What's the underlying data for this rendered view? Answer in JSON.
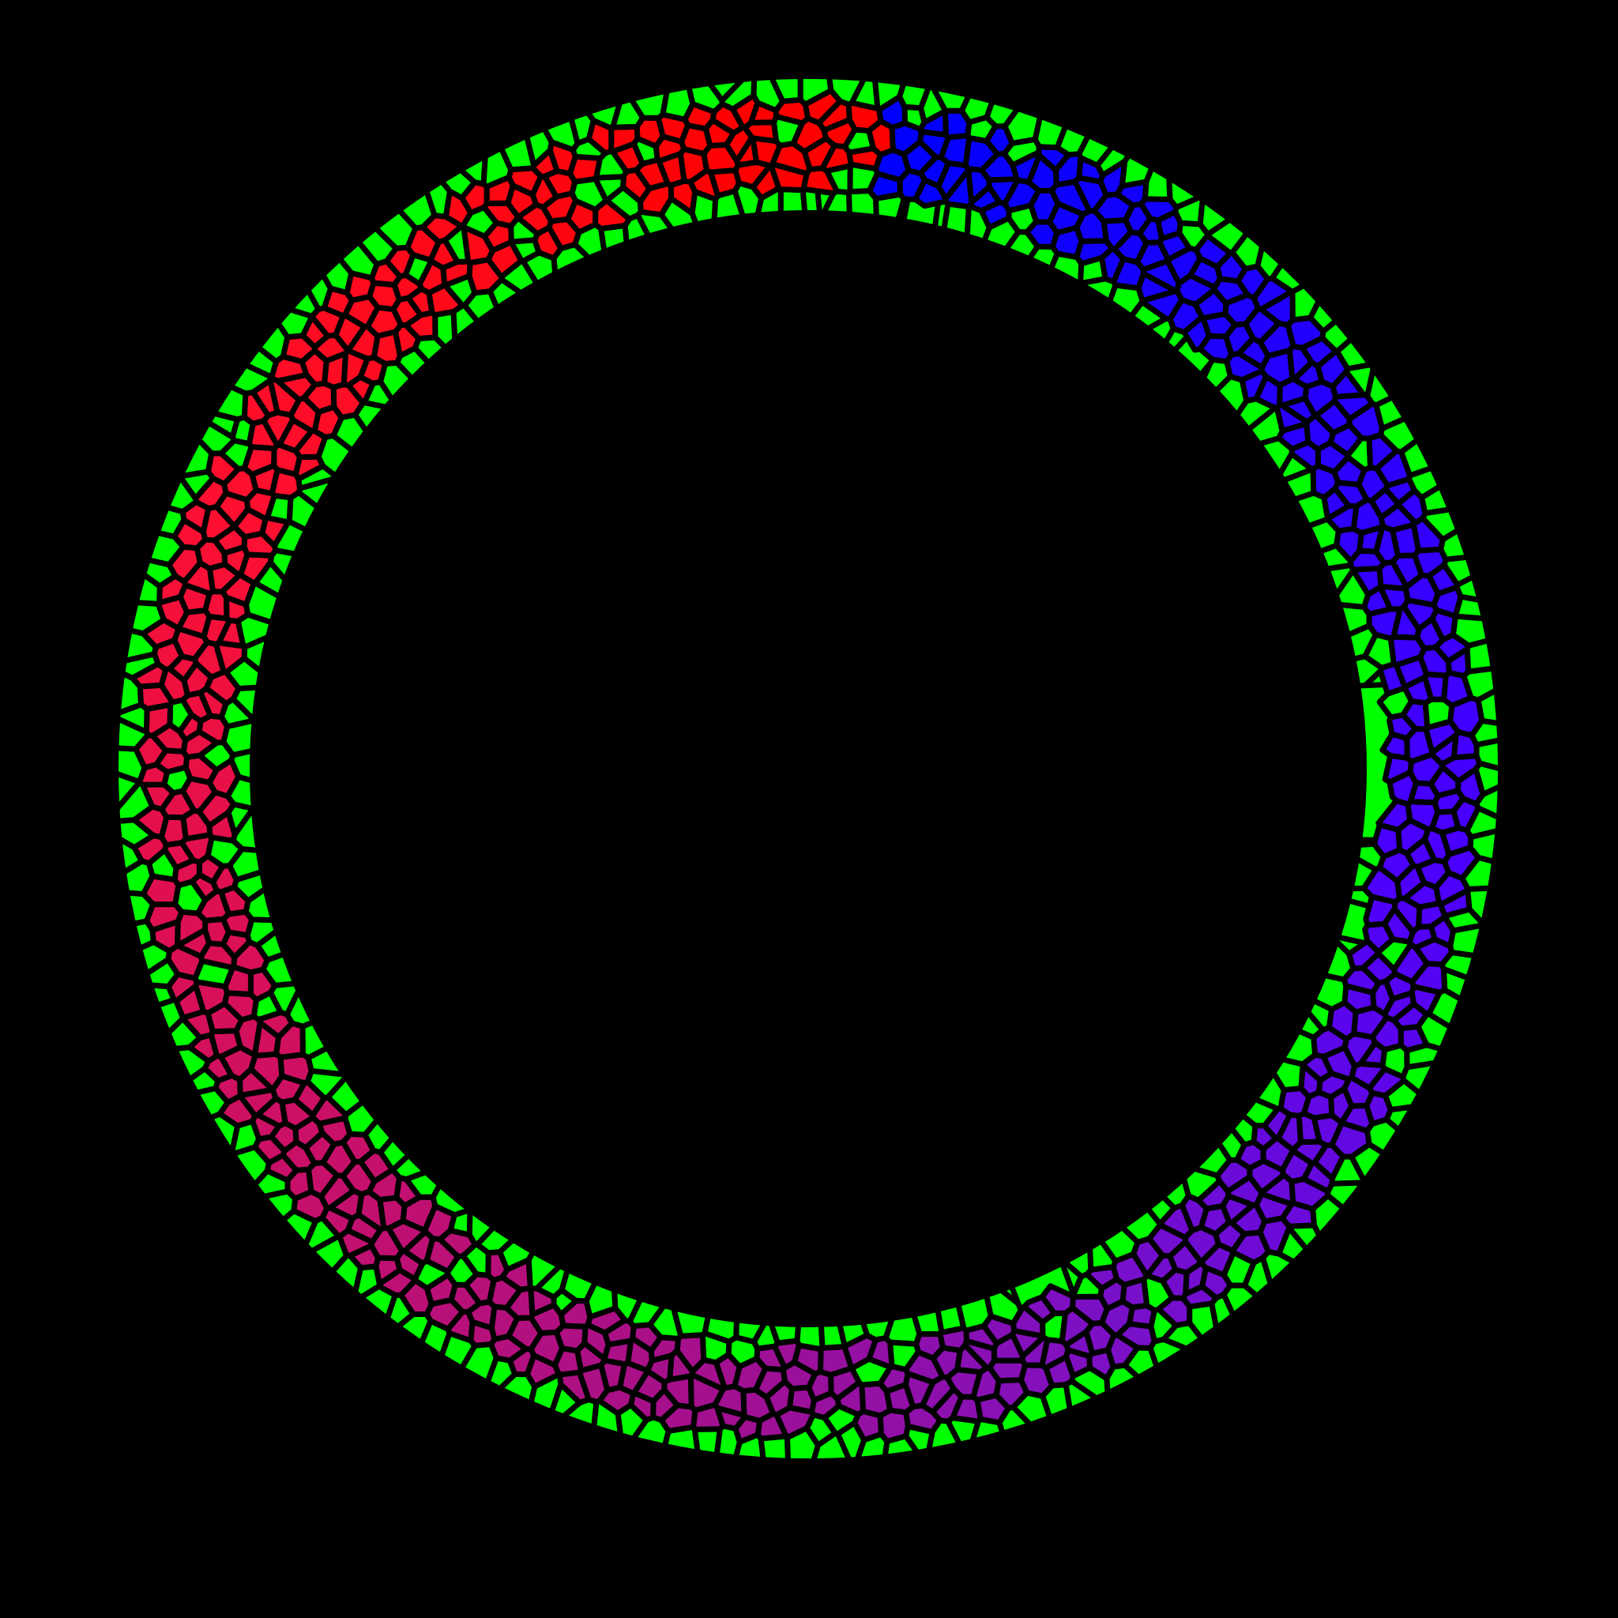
{
  "image": {
    "description_tag": "voronoi-ring-mosaic",
    "background_color": "#000000",
    "border_color": "#000000",
    "ring": {
      "fill_color_outer_band": "#00FF00",
      "gradient_stops": [
        {
          "label": "top",
          "color": "#0000FF"
        },
        {
          "label": "right",
          "color": "#4A00FF"
        },
        {
          "label": "bottom-right",
          "color": "#7A10C8"
        },
        {
          "label": "bottom",
          "color": "#A21090"
        },
        {
          "label": "bottom-left",
          "color": "#D01060"
        },
        {
          "label": "left",
          "color": "#FF1030"
        },
        {
          "label": "top-left",
          "color": "#FF0000"
        }
      ],
      "green_cell_fraction": 0.3
    }
  }
}
